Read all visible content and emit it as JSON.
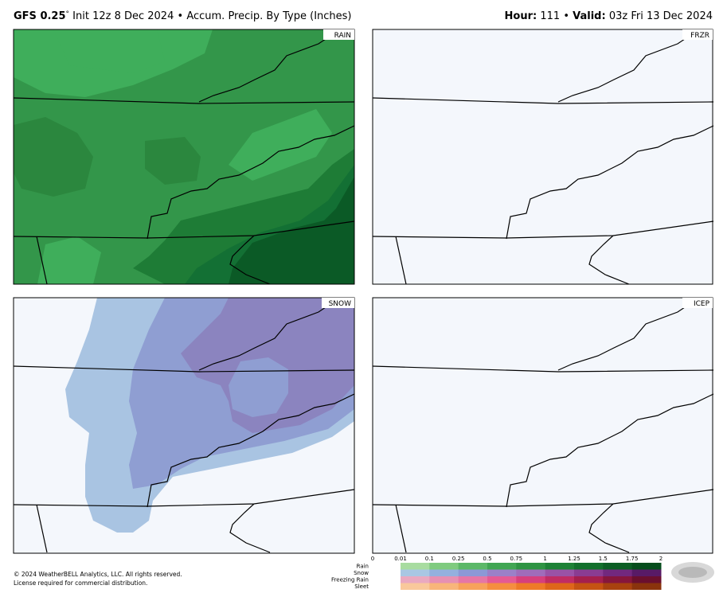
{
  "header": {
    "model": "GFS 0.25",
    "degree": "°",
    "init": "Init 12z 8 Dec 2024",
    "sep": "•",
    "product": "Accum. Precip. By Type (Inches)",
    "hour_label": "Hour:",
    "hour": "111",
    "valid_label": "Valid:",
    "valid": "03z Fri 13 Dec 2024"
  },
  "panels": [
    {
      "label": "RAIN"
    },
    {
      "label": "FRZR"
    },
    {
      "label": "SNOW"
    },
    {
      "label": "ICEP"
    }
  ],
  "legend": {
    "ticks": [
      "0",
      "0.01",
      "0.1",
      "0.25",
      "0.5",
      "0.75",
      "1",
      "1.25",
      "1.5",
      "1.75",
      "2"
    ],
    "rows": [
      "Rain",
      "Snow",
      "Freezing Rain",
      "Sleet"
    ]
  },
  "footer": {
    "copyright": "© 2024 WeatherBELL Analytics, LLC. All rights reserved.",
    "license": "License required for commercial distribution."
  }
}
